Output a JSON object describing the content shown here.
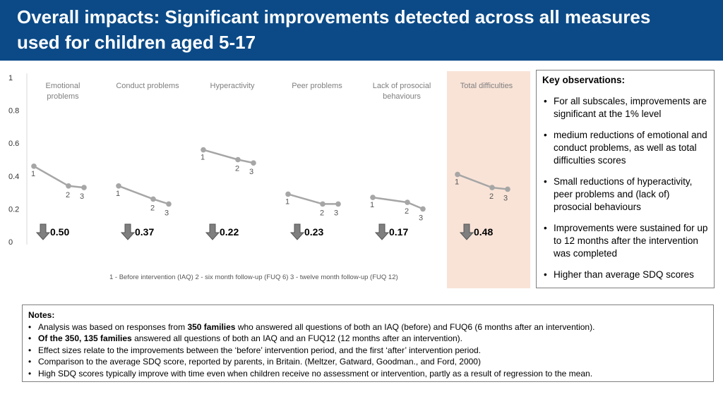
{
  "header": {
    "title": "Overall impacts: Significant improvements detected across all measures used for children aged 5-17"
  },
  "colors": {
    "header_bg": "#0b4a87",
    "line": "#a6a6a6",
    "highlight_bg": "#f9e3d7",
    "axis": "#d9d9d9",
    "arrow_fill": "#7f7f7f"
  },
  "chart_data": {
    "type": "line",
    "y_ticks": [
      "0",
      "0.2",
      "0.4",
      "0.6",
      "0.8",
      "1"
    ],
    "ylim": [
      0,
      1
    ],
    "x": [
      "1",
      "2",
      "3"
    ],
    "legend": "1 - Before intervention (IAQ)   2 - six month follow-up (FUQ 6)   3 - twelve month follow-up (FUQ 12)",
    "panels": [
      {
        "name": "Emotional problems",
        "values": [
          0.46,
          0.34,
          0.33
        ],
        "effect_size": "0.50",
        "highlight": false
      },
      {
        "name": "Conduct problems",
        "values": [
          0.34,
          0.26,
          0.23
        ],
        "effect_size": "0.37",
        "highlight": false
      },
      {
        "name": "Hyperactivity",
        "values": [
          0.56,
          0.5,
          0.48
        ],
        "effect_size": "0.22",
        "highlight": false
      },
      {
        "name": "Peer problems",
        "values": [
          0.29,
          0.23,
          0.23
        ],
        "effect_size": "0.23",
        "highlight": false
      },
      {
        "name": "Lack of prosocial behaviours",
        "values": [
          0.27,
          0.24,
          0.2
        ],
        "effect_size": "0.17",
        "highlight": false
      },
      {
        "name": "Total difficulties",
        "values": [
          0.41,
          0.33,
          0.32
        ],
        "effect_size": "0.48",
        "highlight": true
      }
    ]
  },
  "key_observations": {
    "title": "Key observations:",
    "items": [
      "For all subscales, improvements are significant at the 1% level",
      "medium reductions of emotional and conduct problems, as well as total difficulties scores",
      "Small reductions of hyperactivity, peer problems and (lack of) prosocial behaviours",
      "Improvements were sustained for up to 12 months after the intervention was completed",
      "Higher than average SDQ scores"
    ]
  },
  "notes": {
    "title": "Notes:",
    "items": [
      {
        "pre": "Analysis was based on responses from ",
        "bold": "350 families",
        "post": " who answered all questions of both an IAQ (before) and FUQ6 (6 months after an intervention)."
      },
      {
        "pre": "",
        "bold": "Of the 350, 135 families",
        "post": " answered all questions of both an IAQ and an FUQ12 (12 months after an intervention)."
      },
      {
        "pre": "Effect sizes relate to the improvements between the ‘before’ intervention period, and the first ‘after’ intervention period.",
        "bold": "",
        "post": ""
      },
      {
        "pre": "Comparison to the average SDQ score, reported by parents, in Britain. (Meltzer, Gatward, Goodman., and Ford, 2000)",
        "bold": "",
        "post": ""
      },
      {
        "pre": "High SDQ scores typically improve with time even when children receive no assessment or intervention, partly as a result of regression to the mean.",
        "bold": "",
        "post": ""
      }
    ]
  }
}
